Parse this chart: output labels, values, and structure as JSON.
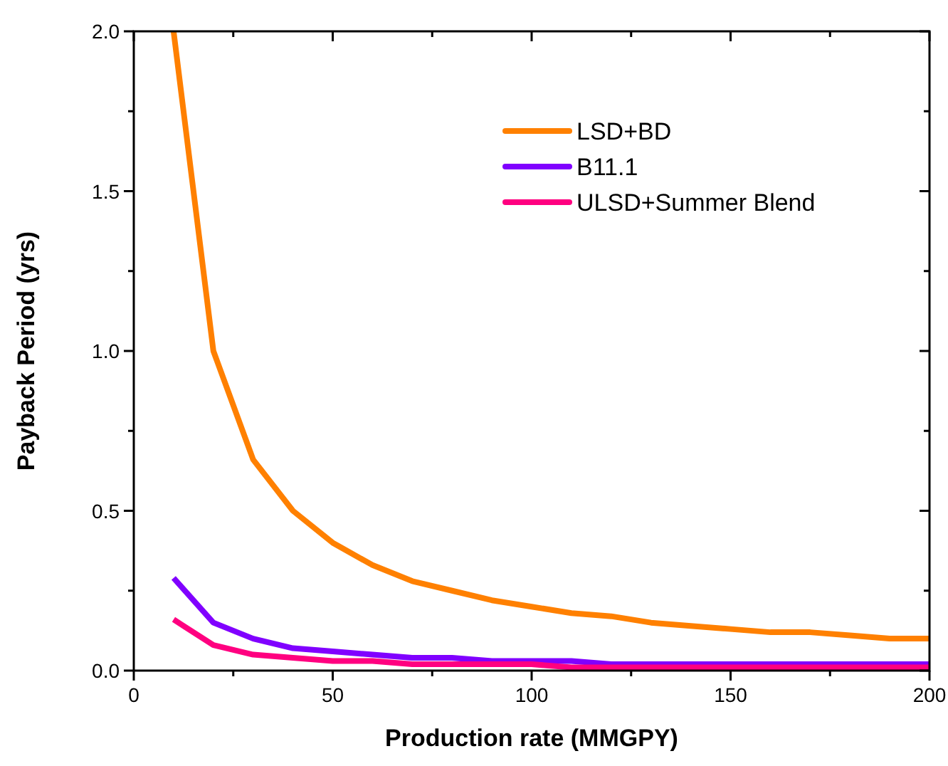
{
  "chart_data": {
    "type": "line",
    "xlabel": "Production rate (MMGPY)",
    "ylabel": "Payback Period (yrs)",
    "x": [
      10,
      20,
      30,
      40,
      50,
      60,
      70,
      80,
      90,
      100,
      110,
      120,
      130,
      140,
      150,
      160,
      170,
      180,
      190,
      200
    ],
    "series": [
      {
        "name": "LSD+BD",
        "color": "#ff8000",
        "values": [
          2.0,
          1.0,
          0.66,
          0.5,
          0.4,
          0.33,
          0.28,
          0.25,
          0.22,
          0.2,
          0.18,
          0.17,
          0.15,
          0.14,
          0.13,
          0.12,
          0.12,
          0.11,
          0.1,
          0.1
        ]
      },
      {
        "name": "B11.1",
        "color": "#8000ff",
        "values": [
          0.29,
          0.15,
          0.1,
          0.07,
          0.06,
          0.05,
          0.04,
          0.04,
          0.03,
          0.03,
          0.03,
          0.02,
          0.02,
          0.02,
          0.02,
          0.02,
          0.02,
          0.02,
          0.02,
          0.02
        ]
      },
      {
        "name": "ULSD+Summer Blend",
        "color": "#ff0080",
        "values": [
          0.16,
          0.08,
          0.05,
          0.04,
          0.03,
          0.03,
          0.02,
          0.02,
          0.02,
          0.02,
          0.01,
          0.01,
          0.01,
          0.01,
          0.01,
          0.01,
          0.01,
          0.01,
          0.01,
          0.01
        ]
      }
    ],
    "xlim": [
      0,
      200
    ],
    "xticks": [
      0,
      {
        "value": 25,
        "label": null
      },
      50,
      {
        "value": 75,
        "label": null
      },
      100,
      {
        "value": 125,
        "label": null
      },
      150,
      {
        "value": 175,
        "label": null
      },
      200
    ],
    "ylim": [
      0,
      2.0
    ],
    "yticks": [
      {
        "value": 0,
        "label": "0.0"
      },
      {
        "value": 0.25,
        "label": null
      },
      {
        "value": 0.5,
        "label": "0.5"
      },
      {
        "value": 0.75,
        "label": null
      },
      {
        "value": 1.0,
        "label": "1.0"
      },
      {
        "value": 1.25,
        "label": null
      },
      {
        "value": 1.5,
        "label": "1.5"
      },
      {
        "value": 1.75,
        "label": null
      },
      {
        "value": 2.0,
        "label": "2.0"
      }
    ],
    "grid": false,
    "legend": "top right",
    "marker": "none",
    "line_style": "solid"
  }
}
